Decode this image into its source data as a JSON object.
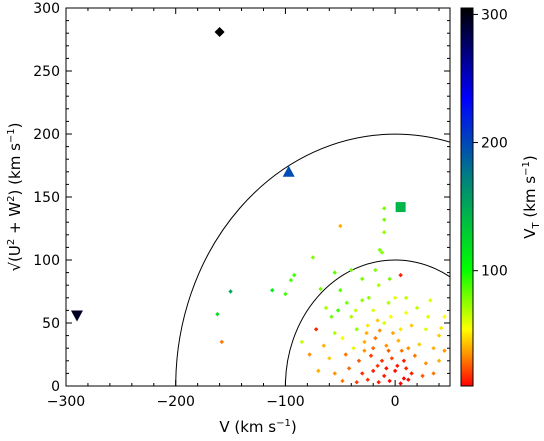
{
  "chart_data": {
    "type": "scatter",
    "xlabel": {
      "main": "V (km s",
      "sup": "−1",
      "end": ")"
    },
    "ylabel": {
      "main": "√(U",
      "sup1": "2",
      "mid": " + W",
      "sup2": "2",
      "end": ") (km s",
      "sup3": "−1",
      "close": ")"
    },
    "colorbar_label": {
      "main": "V",
      "sub": "T",
      "rest": " (km s",
      "sup": "−1",
      "close": ")"
    },
    "xlim": [
      -300,
      50
    ],
    "ylim": [
      0,
      300
    ],
    "xticks": [
      -300,
      -200,
      -100,
      0
    ],
    "yticks": [
      0,
      50,
      100,
      150,
      200,
      250,
      300
    ],
    "colorbar": {
      "range": [
        10,
        305
      ],
      "ticks": [
        100,
        200,
        300
      ]
    },
    "circles": [
      {
        "radius": 100,
        "stroke": "#000000"
      },
      {
        "radius": 200,
        "stroke": "#000000"
      }
    ],
    "markers": [
      {
        "shape": "diamond",
        "x": -160,
        "y": 281,
        "vt": 325
      },
      {
        "shape": "triangle-up",
        "x": -97,
        "y": 170,
        "vt": 197
      },
      {
        "shape": "square",
        "x": 5,
        "y": 142,
        "vt": 142
      },
      {
        "shape": "triangle-down",
        "x": -290,
        "y": 56,
        "vt": 295
      }
    ],
    "points": [
      {
        "x": -50,
        "y": 127,
        "vt": 40
      },
      {
        "x": -10,
        "y": 141,
        "vt": 80
      },
      {
        "x": -10,
        "y": 132,
        "vt": 80
      },
      {
        "x": -12,
        "y": 106,
        "vt": 78
      },
      {
        "x": -14,
        "y": 108,
        "vt": 80
      },
      {
        "x": -10,
        "y": 122,
        "vt": 75
      },
      {
        "x": -75,
        "y": 102,
        "vt": 78
      },
      {
        "x": -92,
        "y": 88,
        "vt": 90
      },
      {
        "x": -95,
        "y": 84,
        "vt": 88
      },
      {
        "x": -112,
        "y": 76,
        "vt": 110
      },
      {
        "x": -100,
        "y": 73,
        "vt": 90
      },
      {
        "x": -150,
        "y": 75,
        "vt": 150
      },
      {
        "x": -162,
        "y": 57,
        "vt": 120
      },
      {
        "x": -158,
        "y": 35,
        "vt": 30
      },
      {
        "x": -68,
        "y": 77,
        "vt": 80
      },
      {
        "x": -55,
        "y": 90,
        "vt": 85
      },
      {
        "x": -40,
        "y": 92,
        "vt": 80
      },
      {
        "x": -5,
        "y": 85,
        "vt": 80
      },
      {
        "x": 5,
        "y": 88,
        "vt": 15
      },
      {
        "x": -15,
        "y": 80,
        "vt": 70
      },
      {
        "x": 0,
        "y": 70,
        "vt": 60
      },
      {
        "x": -30,
        "y": 68,
        "vt": 75
      },
      {
        "x": -52,
        "y": 60,
        "vt": 90
      },
      {
        "x": -63,
        "y": 62,
        "vt": 70
      },
      {
        "x": -58,
        "y": 55,
        "vt": 80
      },
      {
        "x": -40,
        "y": 55,
        "vt": 70
      },
      {
        "x": -20,
        "y": 60,
        "vt": 60
      },
      {
        "x": 10,
        "y": 58,
        "vt": 55
      },
      {
        "x": 20,
        "y": 62,
        "vt": 65
      },
      {
        "x": 30,
        "y": 55,
        "vt": 60
      },
      {
        "x": 45,
        "y": 55,
        "vt": 55
      },
      {
        "x": -72,
        "y": 45,
        "vt": 15
      },
      {
        "x": -55,
        "y": 42,
        "vt": 70
      },
      {
        "x": -35,
        "y": 45,
        "vt": 75
      },
      {
        "x": -25,
        "y": 48,
        "vt": 50
      },
      {
        "x": -10,
        "y": 50,
        "vt": 60
      },
      {
        "x": 5,
        "y": 45,
        "vt": 50
      },
      {
        "x": 15,
        "y": 48,
        "vt": 45
      },
      {
        "x": 28,
        "y": 45,
        "vt": 60
      },
      {
        "x": 40,
        "y": 40,
        "vt": 45
      },
      {
        "x": -85,
        "y": 35,
        "vt": 65
      },
      {
        "x": -65,
        "y": 32,
        "vt": 40
      },
      {
        "x": -48,
        "y": 38,
        "vt": 55
      },
      {
        "x": -38,
        "y": 30,
        "vt": 60
      },
      {
        "x": -28,
        "y": 35,
        "vt": 40
      },
      {
        "x": -18,
        "y": 38,
        "vt": 30
      },
      {
        "x": -8,
        "y": 32,
        "vt": 35
      },
      {
        "x": 3,
        "y": 36,
        "vt": 40
      },
      {
        "x": 12,
        "y": 30,
        "vt": 35
      },
      {
        "x": 22,
        "y": 33,
        "vt": 45
      },
      {
        "x": 35,
        "y": 30,
        "vt": 40
      },
      {
        "x": 45,
        "y": 28,
        "vt": 35
      },
      {
        "x": -78,
        "y": 25,
        "vt": 35
      },
      {
        "x": -60,
        "y": 22,
        "vt": 45
      },
      {
        "x": -45,
        "y": 25,
        "vt": 30
      },
      {
        "x": -33,
        "y": 20,
        "vt": 25
      },
      {
        "x": -22,
        "y": 24,
        "vt": 20
      },
      {
        "x": -12,
        "y": 20,
        "vt": 18
      },
      {
        "x": -3,
        "y": 22,
        "vt": 22
      },
      {
        "x": 8,
        "y": 20,
        "vt": 15
      },
      {
        "x": 18,
        "y": 24,
        "vt": 30
      },
      {
        "x": 28,
        "y": 18,
        "vt": 35
      },
      {
        "x": 40,
        "y": 20,
        "vt": 40
      },
      {
        "x": -70,
        "y": 12,
        "vt": 40
      },
      {
        "x": -55,
        "y": 10,
        "vt": 35
      },
      {
        "x": -42,
        "y": 14,
        "vt": 28
      },
      {
        "x": -30,
        "y": 10,
        "vt": 18
      },
      {
        "x": -20,
        "y": 12,
        "vt": 15
      },
      {
        "x": -10,
        "y": 8,
        "vt": 14
      },
      {
        "x": 0,
        "y": 12,
        "vt": 12
      },
      {
        "x": 8,
        "y": 6,
        "vt": 10
      },
      {
        "x": 15,
        "y": 10,
        "vt": 15
      },
      {
        "x": 25,
        "y": 8,
        "vt": 25
      },
      {
        "x": 35,
        "y": 10,
        "vt": 30
      },
      {
        "x": -48,
        "y": 4,
        "vt": 30
      },
      {
        "x": -35,
        "y": 3,
        "vt": 20
      },
      {
        "x": -25,
        "y": 5,
        "vt": 18
      },
      {
        "x": -15,
        "y": 3,
        "vt": 15
      },
      {
        "x": -5,
        "y": 4,
        "vt": 12
      },
      {
        "x": 5,
        "y": 2,
        "vt": 10
      },
      {
        "x": 12,
        "y": 5,
        "vt": 12
      },
      {
        "x": -16,
        "y": 52,
        "vt": 45
      },
      {
        "x": -4,
        "y": 55,
        "vt": 55
      },
      {
        "x": -26,
        "y": 42,
        "vt": 40
      },
      {
        "x": -14,
        "y": 44,
        "vt": 35
      },
      {
        "x": -2,
        "y": 42,
        "vt": 38
      },
      {
        "x": -20,
        "y": 30,
        "vt": 28
      },
      {
        "x": -6,
        "y": 28,
        "vt": 25
      },
      {
        "x": 6,
        "y": 28,
        "vt": 30
      },
      {
        "x": -16,
        "y": 16,
        "vt": 20
      },
      {
        "x": 2,
        "y": 16,
        "vt": 14
      },
      {
        "x": -28,
        "y": 28,
        "vt": 35
      },
      {
        "x": -8,
        "y": 14,
        "vt": 12
      },
      {
        "x": 10,
        "y": 14,
        "vt": 16
      },
      {
        "x": -36,
        "y": 60,
        "vt": 65
      },
      {
        "x": -44,
        "y": 66,
        "vt": 80
      },
      {
        "x": -24,
        "y": 70,
        "vt": 75
      },
      {
        "x": -6,
        "y": 66,
        "vt": 70
      },
      {
        "x": 10,
        "y": 70,
        "vt": 65
      },
      {
        "x": -30,
        "y": 85,
        "vt": 80
      },
      {
        "x": -18,
        "y": 92,
        "vt": 78
      },
      {
        "x": -50,
        "y": 76,
        "vt": 85
      },
      {
        "x": 32,
        "y": 68,
        "vt": 60
      },
      {
        "x": 42,
        "y": 46,
        "vt": 50
      }
    ]
  }
}
